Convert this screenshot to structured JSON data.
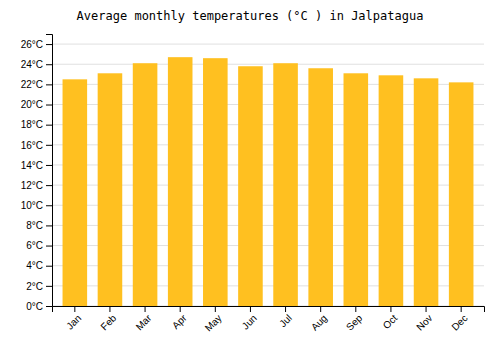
{
  "chart_data": {
    "type": "bar",
    "title": "Average monthly temperatures (°C ) in Jalpatagua",
    "categories": [
      "Jan",
      "Feb",
      "Mar",
      "Apr",
      "May",
      "Jun",
      "Jul",
      "Aug",
      "Sep",
      "Oct",
      "Nov",
      "Dec"
    ],
    "values": [
      22.5,
      23.1,
      24.1,
      24.7,
      24.6,
      23.8,
      24.1,
      23.6,
      23.1,
      22.9,
      22.6,
      22.2
    ],
    "color": "#FFC020",
    "ylim": [
      0,
      27
    ],
    "yticks": [
      {
        "value": 0,
        "label": "0°C"
      },
      {
        "value": 2,
        "label": "2°C"
      },
      {
        "value": 4,
        "label": "4°C"
      },
      {
        "value": 6,
        "label": "6°C"
      },
      {
        "value": 8,
        "label": "8°C"
      },
      {
        "value": 10,
        "label": "10°C"
      },
      {
        "value": 12,
        "label": "12°C"
      },
      {
        "value": 14,
        "label": "14°C"
      },
      {
        "value": 16,
        "label": "16°C"
      },
      {
        "value": 18,
        "label": "18°C"
      },
      {
        "value": 20,
        "label": "20°C"
      },
      {
        "value": 22,
        "label": "22°C"
      },
      {
        "value": 24,
        "label": "24°C"
      },
      {
        "value": 26,
        "label": "26°C"
      }
    ],
    "grid": true
  }
}
